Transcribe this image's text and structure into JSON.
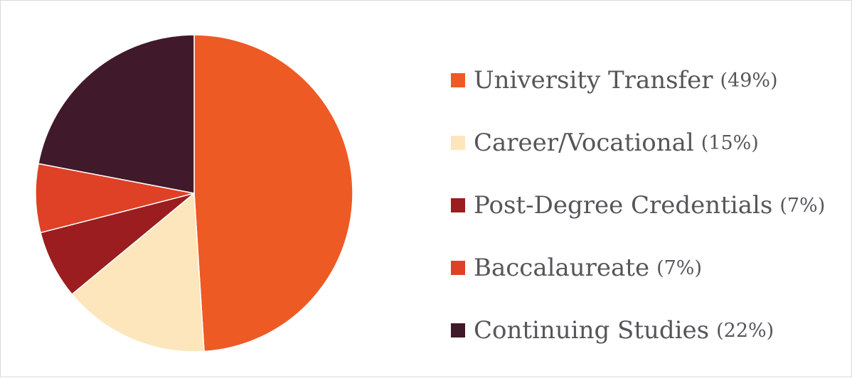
{
  "chart_data": {
    "type": "pie",
    "title": "",
    "legend_position": "right",
    "slices": [
      {
        "label": "University Transfer",
        "value": 49,
        "pct_label": "(49%)",
        "color": "#ee5a24"
      },
      {
        "label": "Career/Vocational",
        "value": 15,
        "pct_label": "(15%)",
        "color": "#fde6bc"
      },
      {
        "label": "Post-Degree Credentials",
        "value": 7,
        "pct_label": "(7%)",
        "color": "#9b1d20"
      },
      {
        "label": "Baccalaureate",
        "value": 7,
        "pct_label": "(7%)",
        "color": "#de4126"
      },
      {
        "label": "Continuing Studies",
        "value": 22,
        "pct_label": "(22%)",
        "color": "#40192a"
      }
    ]
  }
}
